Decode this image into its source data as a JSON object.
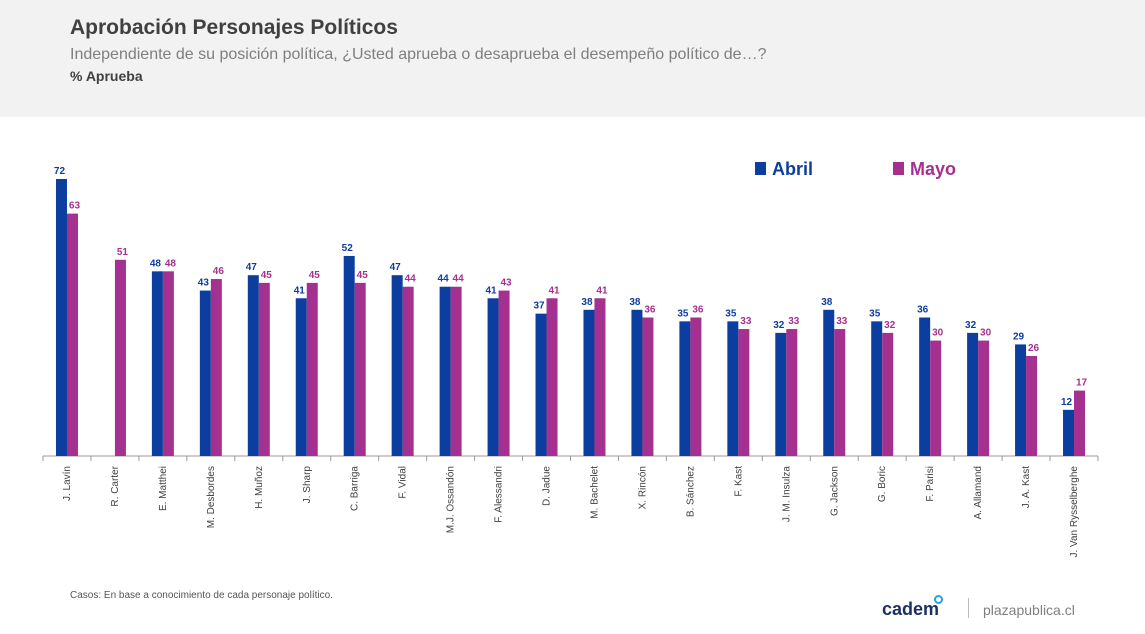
{
  "header": {
    "title": "Aprobación Personajes Políticos",
    "subtitle": "Independiente de su posición política, ¿Usted aprueba o desaprueba el desempeño político de…?",
    "measure": "% Aprueba"
  },
  "chart_data": {
    "type": "bar",
    "title": "Aprobación Personajes Políticos",
    "ylabel": "% Aprueba",
    "xlabel": "",
    "ylim": [
      0,
      72
    ],
    "grid": false,
    "legend": "top-right",
    "categories": [
      "J. Lavín",
      "R. Carter",
      "E. Matthei",
      "M. Desbordes",
      "H. Muñoz",
      "J. Sharp",
      "C. Barriga",
      "F. Vidal",
      "M.J. Ossandón",
      "F. Alessandri",
      "D. Jadue",
      "M. Bachelet",
      "X. Rincón",
      "B. Sánchez",
      "F. Kast",
      "J. M. Insulza",
      "G. Jackson",
      "G. Boric",
      "F. Parisi",
      "A. Allamand",
      "J. A. Kast",
      "J. Van Rysselberghe"
    ],
    "series": [
      {
        "name": "Abril",
        "color": "#0b3e9f",
        "values": [
          72,
          null,
          48,
          43,
          47,
          41,
          52,
          47,
          44,
          41,
          37,
          38,
          38,
          35,
          35,
          32,
          38,
          35,
          36,
          32,
          29,
          12
        ]
      },
      {
        "name": "Mayo",
        "color": "#a4318f",
        "values": [
          63,
          51,
          48,
          46,
          45,
          45,
          45,
          44,
          44,
          43,
          41,
          41,
          36,
          36,
          33,
          33,
          33,
          32,
          30,
          30,
          26,
          17
        ]
      }
    ]
  },
  "footer": {
    "note": "Casos: En base a conocimiento de cada personaje político.",
    "brand": "cadem",
    "site": "plazapublica.cl"
  }
}
